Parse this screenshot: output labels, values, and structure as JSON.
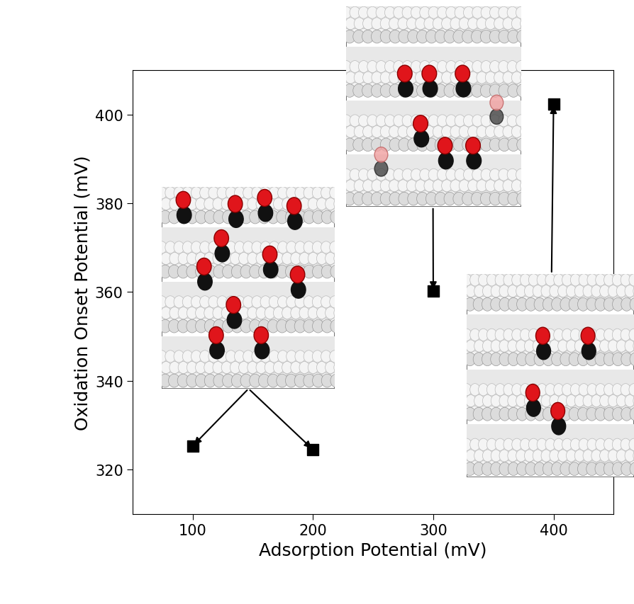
{
  "chart_data": {
    "type": "scatter",
    "x": [
      100,
      200,
      300,
      400
    ],
    "values": [
      325.3,
      324.5,
      360.2,
      402.3
    ],
    "color": "#000000",
    "marker": "s",
    "x_label": "Adsorption Potential (mV)",
    "y_label": "Oxidation Onset Potential (mV)",
    "xlim": [
      50,
      450
    ],
    "xticks": [
      100,
      200,
      300,
      400
    ],
    "ylim": [
      310,
      410
    ],
    "yticks": [
      320,
      340,
      360,
      380,
      400
    ],
    "grid": false
  }
}
